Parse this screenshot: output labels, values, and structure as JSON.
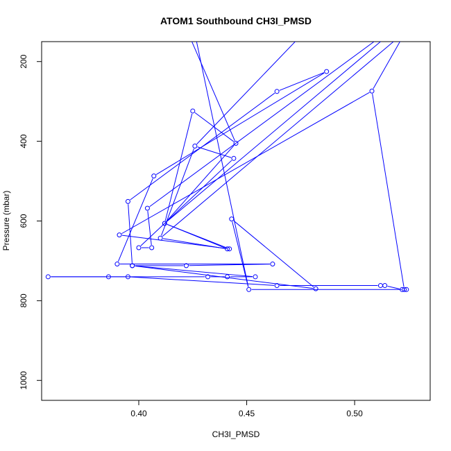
{
  "chart_data": {
    "type": "line",
    "title": "ATOM1 Southbound CH3I_PMSD",
    "xlabel": "CH3I_PMSD",
    "ylabel": "Pressure (mbar)",
    "xlim": [
      0.355,
      0.535
    ],
    "ylim": [
      1050,
      150
    ],
    "y_reversed": true,
    "xticks": [
      0.4,
      0.45,
      0.5
    ],
    "xtick_labels": [
      "0.40",
      "0.45",
      "0.50"
    ],
    "yticks": [
      200,
      400,
      600,
      800,
      1000
    ],
    "ytick_labels": [
      "200",
      "400",
      "600",
      "800",
      "1000"
    ],
    "grid": false,
    "legend": "none",
    "series": [
      {
        "color": "#0000ff",
        "markers": "open-circle",
        "points": [
          {
            "x": 0.524,
            "y": 772
          },
          {
            "x": 0.522,
            "y": 772
          },
          {
            "x": 0.514,
            "y": 762
          },
          {
            "x": 0.512,
            "y": 762
          },
          {
            "x": 0.464,
            "y": 762
          },
          {
            "x": 0.395,
            "y": 740
          },
          {
            "x": 0.358,
            "y": 740
          },
          {
            "x": 0.386,
            "y": 740
          },
          {
            "x": 0.432,
            "y": 740
          },
          {
            "x": 0.441,
            "y": 740
          },
          {
            "x": 0.454,
            "y": 740
          },
          {
            "x": 0.397,
            "y": 712
          },
          {
            "x": 0.422,
            "y": 712
          },
          {
            "x": 0.462,
            "y": 708
          },
          {
            "x": 0.39,
            "y": 708
          },
          {
            "x": 0.407,
            "y": 487
          },
          {
            "x": 0.487,
            "y": 225
          },
          {
            "x": 0.464,
            "y": 275
          },
          {
            "x": 0.395,
            "y": 551
          },
          {
            "x": 0.397,
            "y": 712
          },
          {
            "x": 0.482,
            "y": 770
          },
          {
            "x": 0.443,
            "y": 595
          },
          {
            "x": 0.451,
            "y": 772
          },
          {
            "x": 0.523,
            "y": 772
          },
          {
            "x": 0.508,
            "y": 274
          },
          {
            "x": 0.391,
            "y": 635
          },
          {
            "x": 0.442,
            "y": 670
          },
          {
            "x": 0.412,
            "y": 606
          },
          {
            "x": 0.445,
            "y": 405
          },
          {
            "x": 0.425,
            "y": 324
          },
          {
            "x": 0.412,
            "y": 606
          },
          {
            "x": 0.441,
            "y": 670
          },
          {
            "x": 0.41,
            "y": 643
          },
          {
            "x": 0.426,
            "y": 412
          },
          {
            "x": 0.444,
            "y": 443
          },
          {
            "x": 0.4,
            "y": 667
          },
          {
            "x": 0.406,
            "y": 667
          },
          {
            "x": 0.404,
            "y": 568
          }
        ],
        "offscreen_segments": [
          {
            "from": {
              "x": 0.426,
              "y": 412
            },
            "to": {
              "x": 0.476,
              "y": 130
            }
          },
          {
            "from": {
              "x": 0.445,
              "y": 405
            },
            "to": {
              "x": 0.423,
              "y": 130
            }
          },
          {
            "from": {
              "x": 0.451,
              "y": 772
            },
            "to": {
              "x": 0.426,
              "y": 130
            }
          },
          {
            "from": {
              "x": 0.404,
              "y": 568
            },
            "to": {
              "x": 0.509,
              "y": 150
            }
          },
          {
            "from": {
              "x": 0.41,
              "y": 643
            },
            "to": {
              "x": 0.518,
              "y": 150
            }
          },
          {
            "from": {
              "x": 0.412,
              "y": 606
            },
            "to": {
              "x": 0.512,
              "y": 150
            }
          },
          {
            "from": {
              "x": 0.508,
              "y": 274
            },
            "to": {
              "x": 0.521,
              "y": 150
            }
          }
        ]
      }
    ]
  }
}
